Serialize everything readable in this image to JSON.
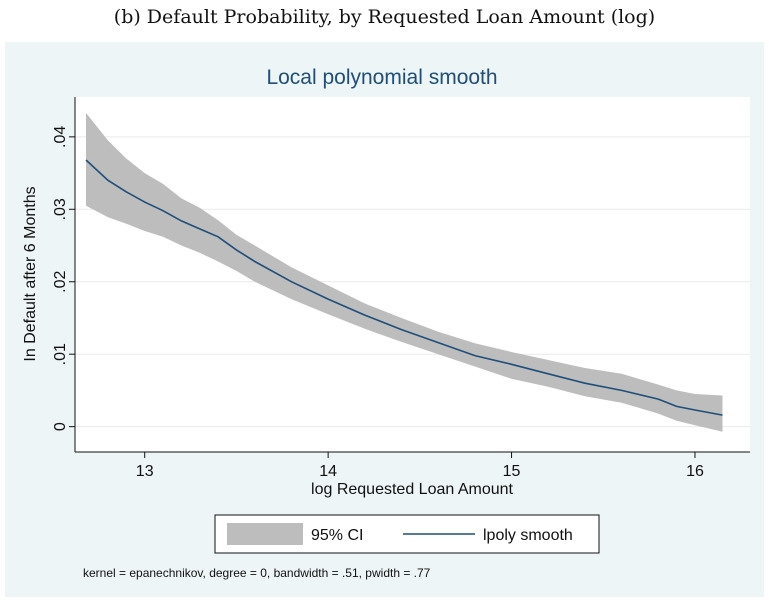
{
  "caption": "(b) Default Probability, by Requested Loan Amount (log)",
  "chart_data": {
    "type": "area",
    "title": "Local polynomial smooth",
    "xlabel": "log Requested Loan Amount",
    "ylabel": "In Default after 6 Months",
    "xlim": [
      12.62,
      16.3
    ],
    "ylim": [
      -0.0035,
      0.0455
    ],
    "x_ticks": [
      13,
      14,
      15,
      16
    ],
    "x_tick_labels": [
      "13",
      "14",
      "15",
      "16"
    ],
    "y_ticks": [
      0,
      0.01,
      0.02,
      0.03,
      0.04
    ],
    "y_tick_labels": [
      "0",
      ".01",
      ".02",
      ".03",
      ".04"
    ],
    "grid": true,
    "legend_position": "bottom",
    "x": [
      12.68,
      12.8,
      12.9,
      13.0,
      13.1,
      13.2,
      13.3,
      13.4,
      13.5,
      13.6,
      13.8,
      14.0,
      14.2,
      14.4,
      14.6,
      14.8,
      15.0,
      15.2,
      15.4,
      15.6,
      15.8,
      15.9,
      16.0,
      16.15
    ],
    "series": [
      {
        "name": "95% CI",
        "kind": "band",
        "color": "#bdbdbd",
        "lower": [
          0.0305,
          0.0289,
          0.028,
          0.027,
          0.0262,
          0.025,
          0.024,
          0.0228,
          0.0215,
          0.02,
          0.0176,
          0.0155,
          0.0135,
          0.0117,
          0.01,
          0.0083,
          0.0066,
          0.0055,
          0.0042,
          0.0033,
          0.0018,
          0.0008,
          0.0002,
          -0.0007
        ],
        "upper": [
          0.0433,
          0.0395,
          0.037,
          0.035,
          0.0335,
          0.0315,
          0.0302,
          0.0285,
          0.0265,
          0.025,
          0.022,
          0.0195,
          0.017,
          0.015,
          0.0131,
          0.0115,
          0.0103,
          0.0092,
          0.0081,
          0.0073,
          0.0058,
          0.005,
          0.0045,
          0.0043
        ]
      },
      {
        "name": "lpoly smooth",
        "kind": "line",
        "color": "#1f4e79",
        "values": [
          0.0368,
          0.034,
          0.0324,
          0.031,
          0.0298,
          0.0284,
          0.0273,
          0.0262,
          0.0244,
          0.0228,
          0.02,
          0.0176,
          0.0154,
          0.0134,
          0.0116,
          0.0098,
          0.0086,
          0.0073,
          0.006,
          0.005,
          0.0038,
          0.0028,
          0.0023,
          0.0016
        ]
      }
    ],
    "note": "kernel = epanechnikov, degree = 0, bandwidth = .51, pwidth = .77"
  },
  "colors": {
    "outer_bg": "#eef5f6",
    "plot_bg": "#ffffff",
    "grid": "#eaeaea",
    "band": "#bdbdbd",
    "line": "#1f4e79",
    "title": "#1f4e79"
  }
}
